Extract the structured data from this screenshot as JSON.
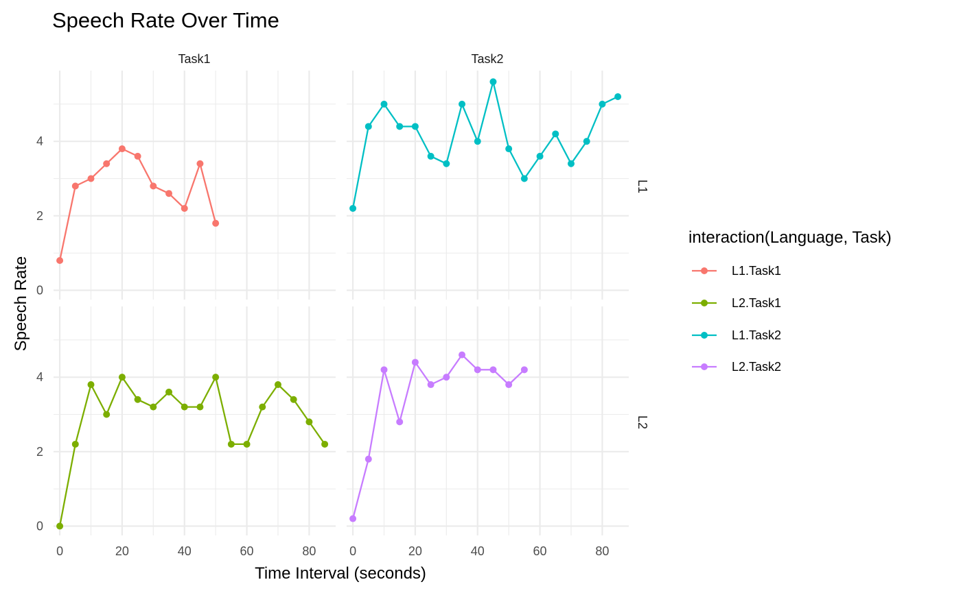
{
  "chart_data": {
    "type": "line",
    "title": "Speech Rate Over Time",
    "xlabel": "Time Interval (seconds)",
    "ylabel": "Speech Rate",
    "xlim": [
      -2,
      88.5
    ],
    "ylim": [
      -0.25,
      5.9
    ],
    "x_ticks": [
      0,
      20,
      40,
      60,
      80
    ],
    "y_ticks": [
      0,
      2,
      4
    ],
    "grid": true,
    "facet_columns": [
      "Task1",
      "Task2"
    ],
    "facet_rows": [
      "L1",
      "L2"
    ],
    "legend": {
      "title": "interaction(Language, Task)",
      "position": "right",
      "entries": [
        "L1.Task1",
        "L2.Task1",
        "L1.Task2",
        "L2.Task2"
      ]
    },
    "series": [
      {
        "name": "L1.Task1",
        "color": "#F8766D",
        "row": 0,
        "col": 0,
        "x": [
          0,
          5,
          10,
          15,
          20,
          25,
          30,
          35,
          40,
          45,
          50
        ],
        "y": [
          0.8,
          2.8,
          3.0,
          3.4,
          3.8,
          3.6,
          2.8,
          2.6,
          2.2,
          3.4,
          1.8
        ]
      },
      {
        "name": "L2.Task1",
        "color": "#7CAE00",
        "row": 1,
        "col": 0,
        "x": [
          0,
          5,
          10,
          15,
          20,
          25,
          30,
          35,
          40,
          45,
          50,
          55,
          60,
          65,
          70,
          75,
          80,
          85
        ],
        "y": [
          0.0,
          2.2,
          3.8,
          3.0,
          4.0,
          3.4,
          3.2,
          3.6,
          3.2,
          3.2,
          4.0,
          2.2,
          2.2,
          3.2,
          3.8,
          3.4,
          2.8,
          2.2
        ]
      },
      {
        "name": "L1.Task2",
        "color": "#00BFC4",
        "row": 0,
        "col": 1,
        "x": [
          0,
          5,
          10,
          15,
          20,
          25,
          30,
          35,
          40,
          45,
          50,
          55,
          60,
          65,
          70,
          75,
          80,
          85
        ],
        "y": [
          2.2,
          4.4,
          5.0,
          4.4,
          4.4,
          3.6,
          3.4,
          5.0,
          4.0,
          5.6,
          3.8,
          3.0,
          3.6,
          4.2,
          3.4,
          4.0,
          5.0,
          5.2
        ]
      },
      {
        "name": "L2.Task2",
        "color": "#C77CFF",
        "row": 1,
        "col": 1,
        "x": [
          0,
          5,
          10,
          15,
          20,
          25,
          30,
          35,
          40,
          45,
          50,
          55
        ],
        "y": [
          0.2,
          1.8,
          4.2,
          2.8,
          4.4,
          3.8,
          4.0,
          4.6,
          4.2,
          4.2,
          3.8,
          4.2
        ]
      }
    ]
  }
}
